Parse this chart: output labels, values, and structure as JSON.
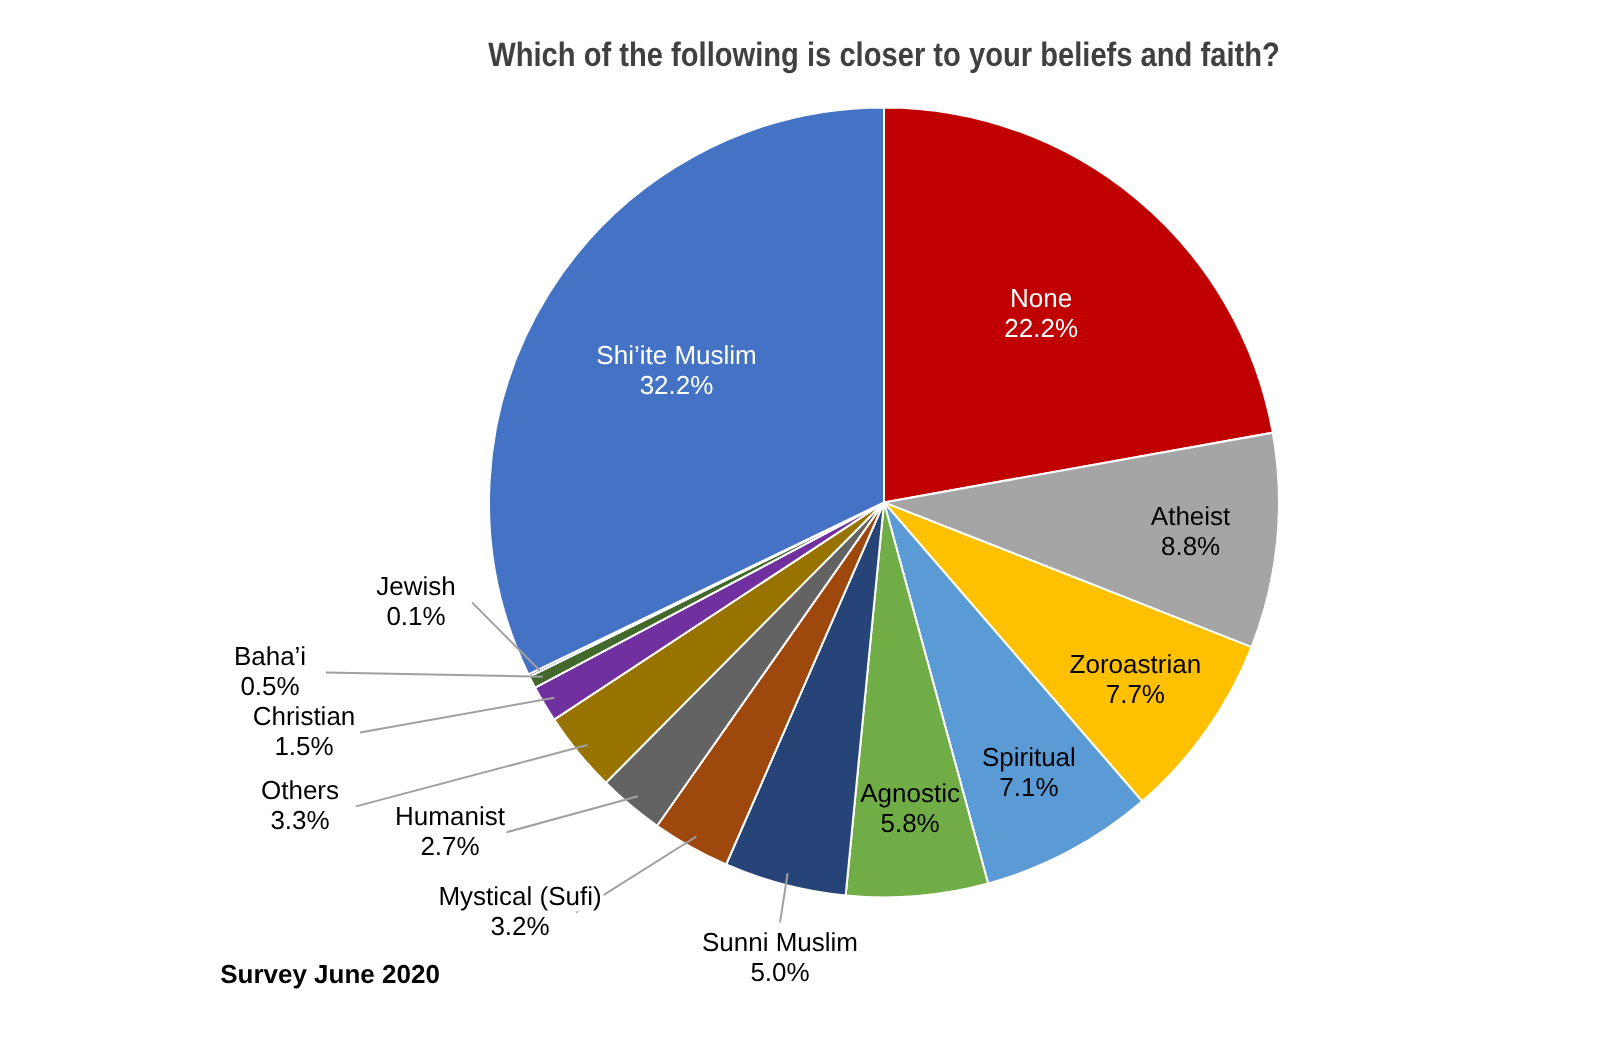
{
  "chart_data": {
    "type": "pie",
    "title": "Which of the following is closer to your beliefs and faith?",
    "categories": [
      "None",
      "Atheist",
      "Zoroastrian",
      "Spiritual",
      "Agnostic",
      "Sunni Muslim",
      "Mystical (Sufi)",
      "Humanist",
      "Others",
      "Christian",
      "Baha’i",
      "Jewish",
      "Shi’ite Muslim"
    ],
    "values": [
      22.2,
      8.8,
      7.7,
      7.1,
      5.8,
      5.0,
      3.2,
      2.7,
      3.3,
      1.5,
      0.5,
      0.1,
      32.2
    ],
    "value_labels": [
      "22.2%",
      "8.8%",
      "7.7%",
      "7.1%",
      "5.8%",
      "5.0%",
      "3.2%",
      "2.7%",
      "3.3%",
      "1.5%",
      "0.5%",
      "0.1%",
      "32.2%"
    ],
    "colors": [
      "#c00000",
      "#a5a5a5",
      "#ffc000",
      "#5b9bd5",
      "#70ad47",
      "#264478",
      "#9e480e",
      "#636363",
      "#997300",
      "#7030a0",
      "#43682b",
      "#255e91",
      "#4472c4"
    ],
    "legend": false,
    "annotations": [
      "Survey June 2020"
    ]
  }
}
